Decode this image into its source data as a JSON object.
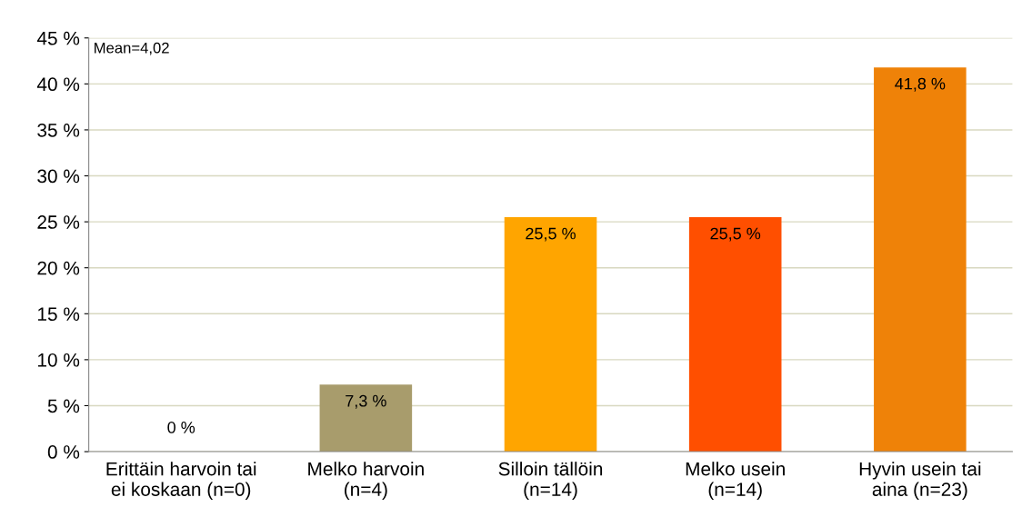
{
  "chart_data": {
    "type": "bar",
    "categories": [
      "Erittäin harvoin tai\nei koskaan (n=0)",
      "Melko harvoin\n(n=4)",
      "Silloin tällöin\n(n=14)",
      "Melko usein\n(n=14)",
      "Hyvin usein tai\naina (n=23)"
    ],
    "values": [
      0,
      7.3,
      25.5,
      25.5,
      41.8
    ],
    "colors": [
      "#a89c6c",
      "#a89c6c",
      "#ffa500",
      "#ff4f00",
      "#ef8208"
    ],
    "value_labels": [
      "0 %",
      "7,3 %",
      "25,5 %",
      "25,5 %",
      "41,8 %"
    ],
    "ylim": [
      0,
      45
    ],
    "yticks": [
      {
        "value": 0,
        "label": "0 %"
      },
      {
        "value": 5,
        "label": "5 %"
      },
      {
        "value": 10,
        "label": "10 %"
      },
      {
        "value": 15,
        "label": "15 %"
      },
      {
        "value": 20,
        "label": "20 %"
      },
      {
        "value": 25,
        "label": "25 %"
      },
      {
        "value": 30,
        "label": "30 %"
      },
      {
        "value": 35,
        "label": "35 %"
      },
      {
        "value": 40,
        "label": "40 %"
      },
      {
        "value": 45,
        "label": "45 %"
      }
    ],
    "grid": "y",
    "annotations": [
      "Mean=4,02"
    ]
  }
}
